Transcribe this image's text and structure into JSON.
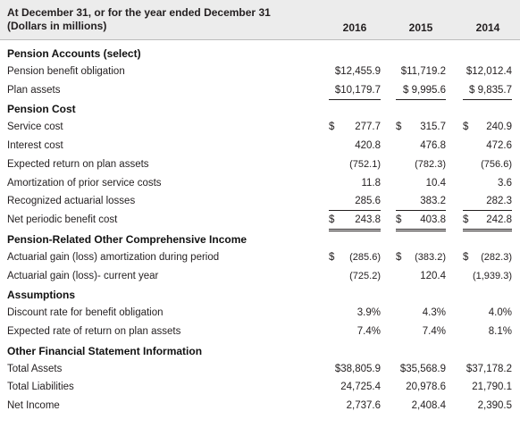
{
  "header": {
    "title_line1": "At December 31, or for the year ended December 31",
    "title_line2": "(Dollars in millions)",
    "years": [
      "2016",
      "2015",
      "2014"
    ]
  },
  "rows": [
    {
      "label": "Pension Accounts (select)",
      "section": true
    },
    {
      "label": "Pension benefit obligation",
      "values": [
        [
          "",
          "$12,455.9"
        ],
        [
          "",
          "$11,719.2"
        ],
        [
          "",
          "$12,012.4"
        ]
      ],
      "border": ""
    },
    {
      "label": "Plan assets",
      "values": [
        [
          "",
          "$10,179.7"
        ],
        [
          "",
          "$ 9,995.6"
        ],
        [
          "",
          "$ 9,835.7"
        ]
      ],
      "border": "ul"
    },
    {
      "label": "Pension Cost",
      "section": true
    },
    {
      "label": "Service cost",
      "values": [
        [
          "$",
          "277.7"
        ],
        [
          "$",
          "315.7"
        ],
        [
          "$",
          "240.9"
        ]
      ],
      "border": ""
    },
    {
      "label": "Interest cost",
      "values": [
        [
          "",
          "420.8"
        ],
        [
          "",
          "476.8"
        ],
        [
          "",
          "472.6"
        ]
      ],
      "border": ""
    },
    {
      "label": "Expected return on plan assets",
      "values": [
        [
          "",
          "(752.1)"
        ],
        [
          "",
          "(782.3)"
        ],
        [
          "",
          "(756.6)"
        ]
      ],
      "border": ""
    },
    {
      "label": "Amortization of prior service costs",
      "values": [
        [
          "",
          "11.8"
        ],
        [
          "",
          "10.4"
        ],
        [
          "",
          "3.6"
        ]
      ],
      "border": ""
    },
    {
      "label": "Recognized actuarial losses",
      "values": [
        [
          "",
          "285.6"
        ],
        [
          "",
          "383.2"
        ],
        [
          "",
          "282.3"
        ]
      ],
      "border": "ul"
    },
    {
      "label": "Net periodic benefit cost",
      "values": [
        [
          "$",
          "243.8"
        ],
        [
          "$",
          "403.8"
        ],
        [
          "$",
          "242.8"
        ]
      ],
      "border": "dul"
    },
    {
      "label": "Pension-Related Other Comprehensive Income",
      "section": true
    },
    {
      "label": "Actuarial gain (loss) amortization during period",
      "values": [
        [
          "$",
          "(285.6)"
        ],
        [
          "$",
          "(383.2)"
        ],
        [
          "$",
          "(282.3)"
        ]
      ],
      "border": ""
    },
    {
      "label": "Actuarial gain (loss)- current year",
      "values": [
        [
          "",
          "(725.2)"
        ],
        [
          "",
          "120.4"
        ],
        [
          "",
          "(1,939.3)"
        ]
      ],
      "border": ""
    },
    {
      "label": "Assumptions",
      "section": true
    },
    {
      "label": "Discount rate for benefit obligation",
      "values": [
        [
          "",
          "3.9%"
        ],
        [
          "",
          "4.3%"
        ],
        [
          "",
          "4.0%"
        ]
      ],
      "border": ""
    },
    {
      "label": "Expected rate of return on plan assets",
      "values": [
        [
          "",
          "7.4%"
        ],
        [
          "",
          "7.4%"
        ],
        [
          "",
          "8.1%"
        ]
      ],
      "border": ""
    },
    {
      "label": "Other Financial Statement Information",
      "section": true
    },
    {
      "label": "Total Assets",
      "values": [
        [
          "",
          "$38,805.9"
        ],
        [
          "",
          "$35,568.9"
        ],
        [
          "",
          "$37,178.2"
        ]
      ],
      "border": ""
    },
    {
      "label": "Total Liabilities",
      "values": [
        [
          "",
          "24,725.4"
        ],
        [
          "",
          "20,978.6"
        ],
        [
          "",
          "21,790.1"
        ]
      ],
      "border": ""
    },
    {
      "label": "Net Income",
      "values": [
        [
          "",
          "2,737.6"
        ],
        [
          "",
          "2,408.4"
        ],
        [
          "",
          "2,390.5"
        ]
      ],
      "border": ""
    }
  ]
}
